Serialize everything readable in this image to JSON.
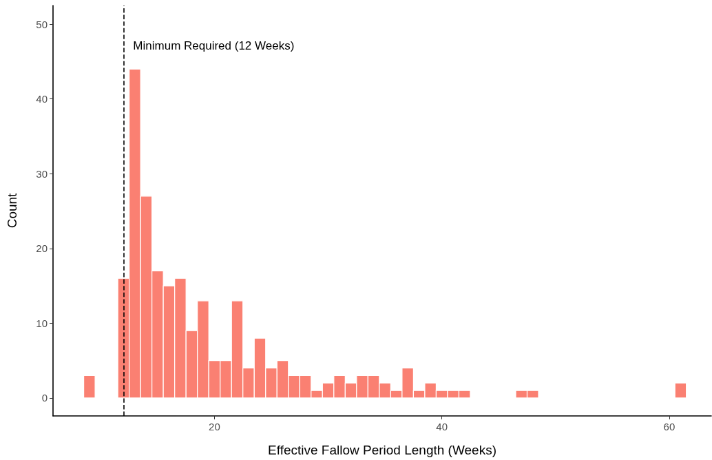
{
  "chart_data": {
    "type": "histogram",
    "xlabel": "Effective Fallow Period Length (Weeks)",
    "ylabel": "Count",
    "bins": [
      8.5,
      9.5,
      10.5,
      11.5,
      12.5,
      13.5,
      14.5,
      15.5,
      16.5,
      17.5,
      18.5,
      19.5,
      20.5,
      21.5,
      22.5,
      23.5,
      24.5,
      25.5,
      26.5,
      27.5,
      28.5,
      29.5,
      30.5,
      31.5,
      32.5,
      33.5,
      34.5,
      35.5,
      36.5,
      37.5,
      38.5,
      39.5,
      40.5,
      41.5,
      42.5,
      43.5,
      44.5,
      45.5,
      46.5,
      47.5,
      48.5,
      49.5,
      50.5,
      51.5,
      52.5,
      53.5,
      54.5,
      55.5,
      56.5,
      57.5,
      58.5,
      59.5,
      60.5,
      61.5
    ],
    "values": [
      3,
      0,
      0,
      16,
      44,
      27,
      17,
      15,
      16,
      9,
      13,
      5,
      5,
      13,
      4,
      8,
      4,
      5,
      3,
      3,
      1,
      2,
      3,
      2,
      3,
      3,
      2,
      1,
      4,
      1,
      2,
      1,
      1,
      1,
      0,
      0,
      0,
      0,
      1,
      1,
      0,
      0,
      0,
      0,
      0,
      0,
      0,
      0,
      0,
      0,
      0,
      0,
      2
    ],
    "color": "#fa8072",
    "xlim": [
      5.8,
      63.7
    ],
    "xticks": [
      20,
      40,
      60
    ],
    "ylim": [
      -2.4,
      52.5
    ],
    "yticks": [
      0,
      10,
      20,
      30,
      40,
      50
    ],
    "grid": false,
    "ref_lines": [
      {
        "axis": "x",
        "value": 12,
        "label": "Minimum Required (12 Weeks)",
        "color": "#000000",
        "line_style": "dashed"
      }
    ]
  }
}
